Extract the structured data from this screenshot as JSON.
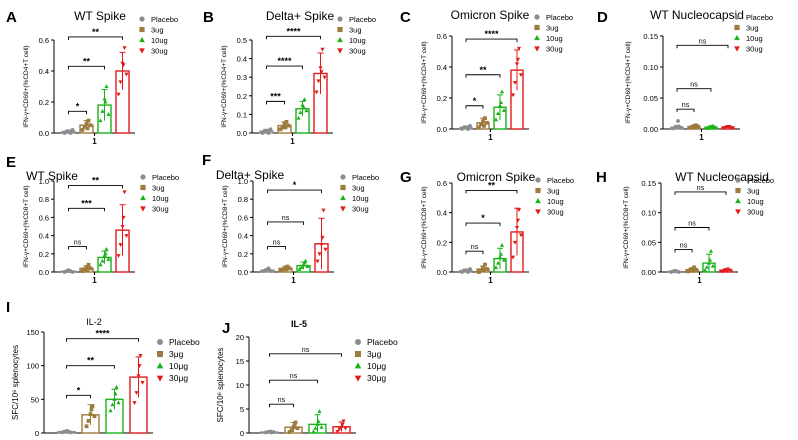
{
  "colors": {
    "placebo": "#8c8c8c",
    "ug3": "#9c7b3c",
    "ug10": "#19b319",
    "ug30": "#e11b1b"
  },
  "chart_data": [
    {
      "type": "bar",
      "panel": "A",
      "title": "WT Spike",
      "ylabel": "IFN-γ+CD69+(%CD4+T cell)",
      "ylim": [
        0,
        0.6
      ],
      "yticks": [
        "0.0",
        "0.2",
        "0.4",
        "0.6"
      ],
      "xtick": "1",
      "legend": [
        "Placebo",
        "3ug",
        "10ug",
        "30ug"
      ],
      "series": [
        {
          "name": "Placebo",
          "mean": 0.01,
          "sd": 0.01,
          "points": [
            0.0,
            0.01,
            0.01,
            0.0,
            0.02,
            0.01
          ]
        },
        {
          "name": "3ug",
          "mean": 0.05,
          "sd": 0.03,
          "points": [
            0.02,
            0.04,
            0.06,
            0.08,
            0.05,
            0.03
          ]
        },
        {
          "name": "10ug",
          "mean": 0.18,
          "sd": 0.1,
          "points": [
            0.08,
            0.14,
            0.22,
            0.3,
            0.12,
            0.2
          ]
        },
        {
          "name": "30ug",
          "mean": 0.4,
          "sd": 0.12,
          "points": [
            0.25,
            0.33,
            0.45,
            0.55,
            0.38,
            0.44
          ]
        }
      ],
      "brackets": [
        {
          "to": 1,
          "label": "*",
          "level": 0.14
        },
        {
          "to": 2,
          "label": "**",
          "level": 0.43
        },
        {
          "to": 3,
          "label": "**",
          "level": 0.62
        }
      ]
    },
    {
      "type": "bar",
      "panel": "B",
      "title": "Delta+ Spike",
      "ylabel": "IFN-γ+CD69+(%CD4+T cell)",
      "ylim": [
        0,
        0.5
      ],
      "yticks": [
        "0.0",
        "0.1",
        "0.2",
        "0.3",
        "0.4",
        "0.5"
      ],
      "xtick": "1",
      "legend": [
        "Placebo",
        "3ug",
        "10ug",
        "30ug"
      ],
      "series": [
        {
          "name": "Placebo",
          "mean": 0.01,
          "sd": 0.01,
          "points": [
            0.0,
            0.01,
            0.01,
            0.0,
            0.02,
            0.01
          ]
        },
        {
          "name": "3ug",
          "mean": 0.04,
          "sd": 0.02,
          "points": [
            0.02,
            0.03,
            0.05,
            0.06,
            0.04,
            0.03
          ]
        },
        {
          "name": "10ug",
          "mean": 0.13,
          "sd": 0.04,
          "points": [
            0.08,
            0.11,
            0.15,
            0.18,
            0.12,
            0.14
          ]
        },
        {
          "name": "30ug",
          "mean": 0.32,
          "sd": 0.11,
          "points": [
            0.22,
            0.28,
            0.35,
            0.45,
            0.3,
            0.33
          ]
        }
      ],
      "brackets": [
        {
          "to": 1,
          "label": "***",
          "level": 0.17
        },
        {
          "to": 2,
          "label": "****",
          "level": 0.36
        },
        {
          "to": 3,
          "label": "****",
          "level": 0.52
        }
      ]
    },
    {
      "type": "bar",
      "panel": "C",
      "title": "Omicron Spike",
      "ylabel": "IFN-γ+CD69+(%CD4+T cell)",
      "ylim": [
        0,
        0.6
      ],
      "yticks": [
        "0.0",
        "0.2",
        "0.4",
        "0.6"
      ],
      "xtick": "1",
      "legend": [
        "Placebo",
        "3ug",
        "10ug",
        "30ug"
      ],
      "series": [
        {
          "name": "Placebo",
          "mean": 0.01,
          "sd": 0.01,
          "points": [
            0.0,
            0.01,
            0.01,
            0.0,
            0.02,
            0.01
          ]
        },
        {
          "name": "3ug",
          "mean": 0.04,
          "sd": 0.03,
          "points": [
            0.01,
            0.03,
            0.05,
            0.07,
            0.04,
            0.02
          ]
        },
        {
          "name": "10ug",
          "mean": 0.14,
          "sd": 0.08,
          "points": [
            0.06,
            0.1,
            0.15,
            0.24,
            0.12,
            0.17
          ]
        },
        {
          "name": "30ug",
          "mean": 0.38,
          "sd": 0.13,
          "points": [
            0.22,
            0.3,
            0.42,
            0.52,
            0.35,
            0.45
          ]
        }
      ],
      "brackets": [
        {
          "to": 1,
          "label": "*",
          "level": 0.15
        },
        {
          "to": 2,
          "label": "**",
          "level": 0.35
        },
        {
          "to": 3,
          "label": "****",
          "level": 0.58
        }
      ]
    },
    {
      "type": "bar",
      "panel": "D",
      "title": "WT Nucleocapsid",
      "ylabel": "IFN-γ+CD69+(%CD4+T cell)",
      "ylim": [
        0,
        0.15
      ],
      "yticks": [
        "0.00",
        "0.05",
        "0.10",
        "0.15"
      ],
      "xtick": "1",
      "legend": [
        "Placebo",
        "3ug",
        "10ug",
        "30ug"
      ],
      "series": [
        {
          "name": "Placebo",
          "mean": 0.003,
          "sd": 0.003,
          "points": [
            0.001,
            0.002,
            0.003,
            0.004,
            0.002,
            0.013
          ]
        },
        {
          "name": "3ug",
          "mean": 0.004,
          "sd": 0.002,
          "points": [
            0.002,
            0.003,
            0.005,
            0.006,
            0.004,
            0.003
          ]
        },
        {
          "name": "10ug",
          "mean": 0.003,
          "sd": 0.002,
          "points": [
            0.001,
            0.002,
            0.004,
            0.005,
            0.003,
            0.002
          ]
        },
        {
          "name": "30ug",
          "mean": 0.003,
          "sd": 0.001,
          "points": [
            0.002,
            0.003,
            0.004,
            0.003,
            0.002,
            0.004
          ]
        }
      ],
      "brackets": [
        {
          "to": 1,
          "label": "ns",
          "level": 0.032
        },
        {
          "to": 2,
          "label": "ns",
          "level": 0.065
        },
        {
          "to": 3,
          "label": "ns",
          "level": 0.135
        }
      ]
    },
    {
      "type": "bar",
      "panel": "E",
      "title": "WT Spike",
      "ylabel": "IFN-γ+CD69+(%CD8+T cell)",
      "ylim": [
        0,
        1.0
      ],
      "yticks": [
        "0.0",
        "0.2",
        "0.4",
        "0.6",
        "0.8",
        "1.0"
      ],
      "xtick": "1",
      "legend": [
        "Placebo",
        "3ug",
        "10ug",
        "30ug"
      ],
      "series": [
        {
          "name": "Placebo",
          "mean": 0.01,
          "sd": 0.01,
          "points": [
            0.0,
            0.01,
            0.02,
            0.01,
            0.0,
            0.01
          ]
        },
        {
          "name": "3ug",
          "mean": 0.04,
          "sd": 0.03,
          "points": [
            0.01,
            0.03,
            0.05,
            0.08,
            0.04,
            0.02
          ]
        },
        {
          "name": "10ug",
          "mean": 0.16,
          "sd": 0.07,
          "points": [
            0.08,
            0.12,
            0.18,
            0.25,
            0.14,
            0.2
          ]
        },
        {
          "name": "30ug",
          "mean": 0.46,
          "sd": 0.28,
          "points": [
            0.18,
            0.3,
            0.5,
            0.88,
            0.4,
            0.6
          ]
        }
      ],
      "brackets": [
        {
          "to": 1,
          "label": "ns",
          "level": 0.28
        },
        {
          "to": 2,
          "label": "***",
          "level": 0.7
        },
        {
          "to": 3,
          "label": "**",
          "level": 0.95
        }
      ]
    },
    {
      "type": "bar",
      "panel": "F",
      "title": "Delta+ Spike",
      "ylabel": "IFN-γ+CD69+(%CD8+T cell)",
      "ylim": [
        0,
        1.0
      ],
      "yticks": [
        "0.0",
        "0.2",
        "0.4",
        "0.6",
        "0.8",
        "1.0"
      ],
      "xtick": "1",
      "legend": [
        "Placebo",
        "3ug",
        "10ug",
        "30ug"
      ],
      "series": [
        {
          "name": "Placebo",
          "mean": 0.02,
          "sd": 0.01,
          "points": [
            0.01,
            0.02,
            0.03,
            0.02,
            0.01,
            0.04
          ]
        },
        {
          "name": "3ug",
          "mean": 0.04,
          "sd": 0.02,
          "points": [
            0.02,
            0.03,
            0.05,
            0.06,
            0.04,
            0.03
          ]
        },
        {
          "name": "10ug",
          "mean": 0.07,
          "sd": 0.04,
          "points": [
            0.03,
            0.05,
            0.08,
            0.12,
            0.06,
            0.1
          ]
        },
        {
          "name": "30ug",
          "mean": 0.31,
          "sd": 0.28,
          "points": [
            0.12,
            0.2,
            0.3,
            0.68,
            0.25,
            0.38
          ]
        }
      ],
      "brackets": [
        {
          "to": 1,
          "label": "ns",
          "level": 0.28
        },
        {
          "to": 2,
          "label": "ns",
          "level": 0.55
        },
        {
          "to": 3,
          "label": "*",
          "level": 0.9
        }
      ]
    },
    {
      "type": "bar",
      "panel": "G",
      "title": "Omicron Spike",
      "ylabel": "IFN-γ+CD69+(%CD8+T cell)",
      "ylim": [
        0,
        0.6
      ],
      "yticks": [
        "0.0",
        "0.2",
        "0.4",
        "0.6"
      ],
      "xtick": "1",
      "legend": [
        "Placebo",
        "3ug",
        "10ug",
        "30ug"
      ],
      "series": [
        {
          "name": "Placebo",
          "mean": 0.01,
          "sd": 0.01,
          "points": [
            0.0,
            0.01,
            0.01,
            0.0,
            0.02,
            0.01
          ]
        },
        {
          "name": "3ug",
          "mean": 0.02,
          "sd": 0.02,
          "points": [
            0.0,
            0.01,
            0.03,
            0.05,
            0.02,
            0.01
          ]
        },
        {
          "name": "10ug",
          "mean": 0.09,
          "sd": 0.07,
          "points": [
            0.03,
            0.06,
            0.1,
            0.18,
            0.08,
            0.12
          ]
        },
        {
          "name": "30ug",
          "mean": 0.27,
          "sd": 0.16,
          "points": [
            0.1,
            0.2,
            0.3,
            0.42,
            0.25,
            0.35
          ]
        }
      ],
      "brackets": [
        {
          "to": 1,
          "label": "ns",
          "level": 0.14
        },
        {
          "to": 2,
          "label": "*",
          "level": 0.33
        },
        {
          "to": 3,
          "label": "**",
          "level": 0.55
        }
      ]
    },
    {
      "type": "bar",
      "panel": "H",
      "title": "WT Nucleocapsid",
      "ylabel": "IFN-γ+CD69+(%CD8+T cell)",
      "ylim": [
        0,
        0.15
      ],
      "yticks": [
        "0.00",
        "0.05",
        "0.10",
        "0.15"
      ],
      "xtick": "1",
      "legend": [
        "Placebo",
        "3ug",
        "10ug",
        "30ug"
      ],
      "series": [
        {
          "name": "Placebo",
          "mean": 0.001,
          "sd": 0.001,
          "points": [
            0.0,
            0.001,
            0.002,
            0.001,
            0.0,
            0.001
          ]
        },
        {
          "name": "3ug",
          "mean": 0.004,
          "sd": 0.003,
          "points": [
            0.001,
            0.003,
            0.005,
            0.008,
            0.004,
            0.002
          ]
        },
        {
          "name": "10ug",
          "mean": 0.015,
          "sd": 0.015,
          "points": [
            0.003,
            0.008,
            0.015,
            0.035,
            0.01,
            0.02
          ]
        },
        {
          "name": "30ug",
          "mean": 0.003,
          "sd": 0.002,
          "points": [
            0.001,
            0.002,
            0.004,
            0.005,
            0.003,
            0.002
          ]
        }
      ],
      "brackets": [
        {
          "to": 1,
          "label": "ns",
          "level": 0.038
        },
        {
          "to": 2,
          "label": "ns",
          "level": 0.075
        },
        {
          "to": 3,
          "label": "ns",
          "level": 0.135
        }
      ]
    },
    {
      "type": "bar",
      "panel": "I",
      "title": "IL-2",
      "ylabel": "SFC/10⁶ splenocytes",
      "ylim": [
        0,
        150
      ],
      "yticks": [
        "0",
        "50",
        "100",
        "150"
      ],
      "xtick": "",
      "legend": [
        "Placebo",
        "3μg",
        "10μg",
        "30μg"
      ],
      "series": [
        {
          "name": "Placebo",
          "mean": 2,
          "sd": 1,
          "points": [
            1,
            2,
            3,
            2,
            1,
            3
          ]
        },
        {
          "name": "3μg",
          "mean": 27,
          "sd": 15,
          "points": [
            10,
            18,
            28,
            40,
            25,
            35
          ]
        },
        {
          "name": "10μg",
          "mean": 50,
          "sd": 15,
          "points": [
            33,
            42,
            50,
            68,
            45,
            58
          ]
        },
        {
          "name": "30μg",
          "mean": 83,
          "sd": 30,
          "points": [
            45,
            60,
            85,
            115,
            75,
            100
          ]
        }
      ],
      "brackets": [
        {
          "to": 1,
          "label": "*",
          "level": 56
        },
        {
          "to": 2,
          "label": "**",
          "level": 100
        },
        {
          "to": 3,
          "label": "****",
          "level": 140
        }
      ]
    },
    {
      "type": "bar",
      "panel": "J",
      "title": "IL-5",
      "ylabel": "SFC/10⁶ splenocytes",
      "ylim": [
        0,
        20
      ],
      "yticks": [
        "0",
        "5",
        "10",
        "15",
        "20"
      ],
      "xtick": "",
      "legend": [
        "Placebo",
        "3μg",
        "10μg",
        "30μg"
      ],
      "series": [
        {
          "name": "Placebo",
          "mean": 0.2,
          "sd": 0.1,
          "points": [
            0.1,
            0.2,
            0.3,
            0.1,
            0.2,
            0.3
          ]
        },
        {
          "name": "3μg",
          "mean": 1.2,
          "sd": 1.0,
          "points": [
            0.2,
            0.6,
            1.2,
            2.2,
            1.0,
            1.6
          ]
        },
        {
          "name": "10μg",
          "mean": 1.8,
          "sd": 2.0,
          "points": [
            0.3,
            1.0,
            1.8,
            4.5,
            1.2,
            2.4
          ]
        },
        {
          "name": "30μg",
          "mean": 1.3,
          "sd": 1.0,
          "points": [
            0.3,
            0.8,
            1.2,
            2.5,
            1.0,
            1.8
          ]
        }
      ],
      "brackets": [
        {
          "to": 1,
          "label": "ns",
          "level": 6
        },
        {
          "to": 2,
          "label": "ns",
          "level": 11
        },
        {
          "to": 3,
          "label": "ns",
          "level": 16.5
        }
      ]
    }
  ]
}
